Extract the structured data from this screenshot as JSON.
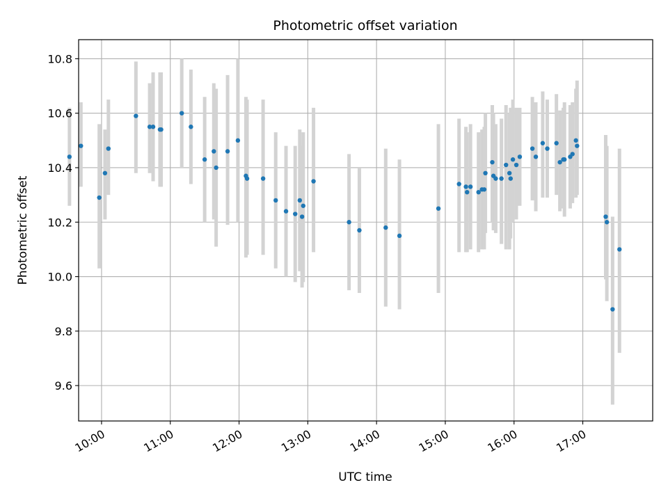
{
  "chart_data": {
    "type": "scatter",
    "title": "Photometric offset variation",
    "xlabel": "UTC time",
    "ylabel": "Photometric offset",
    "grid": true,
    "xlim": [
      "09:40",
      "18:01"
    ],
    "ylim": [
      9.47,
      10.87
    ],
    "xticks": [
      "10:00",
      "11:00",
      "12:00",
      "13:00",
      "14:00",
      "15:00",
      "16:00",
      "17:00"
    ],
    "yticks": [
      "9.6",
      "9.8",
      "10.0",
      "10.2",
      "10.4",
      "10.6",
      "10.8"
    ],
    "errorbar_color": "#d3d3d3",
    "marker_color": "#1f77b4",
    "series": [
      {
        "x": [
          "09:32",
          "09:42",
          "09:58",
          "10:03",
          "10:06",
          "10:30",
          "10:42",
          "10:45",
          "10:51",
          "10:52",
          "11:10",
          "11:18",
          "11:30",
          "11:38",
          "11:40",
          "11:50",
          "11:59",
          "12:06",
          "12:07",
          "12:21",
          "12:32",
          "12:41",
          "12:49",
          "12:53",
          "12:55",
          "12:56",
          "13:05",
          "13:36",
          "13:45",
          "14:08",
          "14:20",
          "14:54",
          "15:12",
          "15:18",
          "15:19",
          "15:22",
          "15:29",
          "15:32",
          "15:34",
          "15:35",
          "15:41",
          "15:42",
          "15:44",
          "15:49",
          "15:53",
          "15:56",
          "15:57",
          "15:59",
          "16:02",
          "16:05",
          "16:16",
          "16:19",
          "16:25",
          "16:29",
          "16:37",
          "16:40",
          "16:43",
          "16:44",
          "16:49",
          "16:51",
          "16:54"
        ],
        "y": [
          10.44,
          10.48,
          10.29,
          10.38,
          10.47,
          10.59,
          10.55,
          10.55,
          10.54,
          10.54,
          10.6,
          10.55,
          10.43,
          10.46,
          10.4,
          10.46,
          10.5,
          10.37,
          10.36,
          10.36,
          10.28,
          10.24,
          10.23,
          10.28,
          10.22,
          10.26,
          10.35,
          10.2,
          10.17,
          10.18,
          10.15,
          10.25,
          10.34,
          10.33,
          10.31,
          10.33,
          10.31,
          10.32,
          10.32,
          10.38,
          10.42,
          10.37,
          10.36,
          10.36,
          10.41,
          10.38,
          10.36,
          10.43,
          10.41,
          10.44,
          10.47,
          10.44,
          10.49,
          10.47,
          10.49,
          10.42,
          10.43,
          10.43,
          10.44,
          10.45,
          10.5
        ],
        "yerr_low": [
          10.26,
          10.33,
          10.03,
          10.21,
          10.3,
          10.38,
          10.38,
          10.35,
          10.33,
          10.33,
          10.4,
          10.34,
          10.2,
          10.21,
          10.11,
          10.19,
          10.2,
          10.07,
          10.08,
          10.08,
          10.03,
          10.0,
          9.98,
          10.02,
          9.96,
          9.98,
          10.09,
          9.95,
          9.94,
          9.89,
          9.88,
          9.94,
          10.09,
          10.09,
          10.09,
          10.1,
          10.09,
          10.1,
          10.1,
          10.16,
          10.2,
          10.17,
          10.16,
          10.12,
          10.1,
          10.1,
          10.14,
          10.2,
          10.21,
          10.26,
          10.28,
          10.24,
          10.29,
          10.29,
          10.3,
          10.24,
          10.25,
          10.22,
          10.25,
          10.27,
          10.29
        ],
        "yerr_high": [
          10.62,
          10.64,
          10.56,
          10.54,
          10.65,
          10.79,
          10.71,
          10.75,
          10.75,
          10.75,
          10.8,
          10.76,
          10.66,
          10.71,
          10.69,
          10.74,
          10.8,
          10.66,
          10.65,
          10.65,
          10.53,
          10.48,
          10.48,
          10.54,
          10.48,
          10.53,
          10.62,
          10.45,
          10.4,
          10.47,
          10.43,
          10.56,
          10.58,
          10.55,
          10.53,
          10.56,
          10.53,
          10.54,
          10.55,
          10.6,
          10.63,
          10.6,
          10.56,
          10.58,
          10.63,
          10.6,
          10.62,
          10.65,
          10.62,
          10.62,
          10.66,
          10.64,
          10.68,
          10.65,
          10.67,
          10.61,
          10.62,
          10.64,
          10.63,
          10.64,
          10.69
        ]
      },
      {
        "x": [
          "16:55",
          "17:20",
          "17:21",
          "17:26",
          "17:32"
        ],
        "y": [
          10.48,
          10.22,
          10.2,
          9.88,
          10.1
        ],
        "yerr_low": [
          10.3,
          9.99,
          9.91,
          9.53,
          9.72
        ],
        "yerr_high": [
          10.72,
          10.52,
          10.48,
          10.22,
          10.47
        ]
      }
    ]
  }
}
